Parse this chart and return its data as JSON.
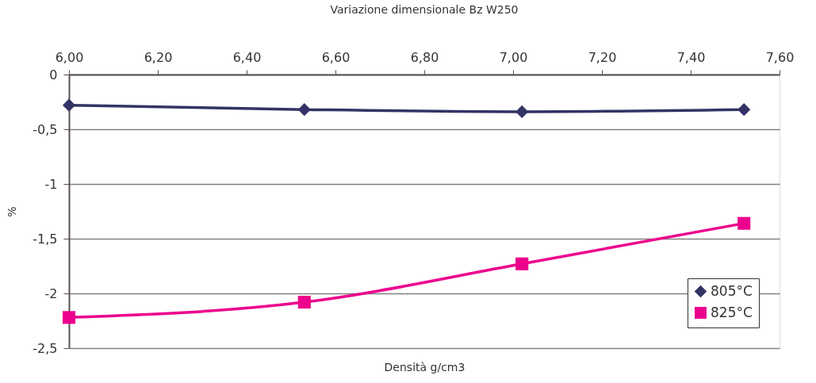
{
  "chart_data": {
    "type": "line",
    "title": "Variazione dimensionale Bz W250",
    "xlabel": "Densità g/cm3",
    "ylabel": "%",
    "x": [
      6.0,
      6.53,
      7.02,
      7.52
    ],
    "series": [
      {
        "name": "805°C",
        "color": "#333366",
        "marker": "diamond",
        "values": [
          -0.28,
          -0.32,
          -0.34,
          -0.32
        ]
      },
      {
        "name": "825°C",
        "color": "#ec008c",
        "marker": "square",
        "values": [
          -2.22,
          -2.08,
          -1.73,
          -1.36
        ]
      }
    ],
    "xlim": [
      6.0,
      7.6
    ],
    "xticks": [
      {
        "value": 6.0,
        "label": "6,00"
      },
      {
        "value": 6.2,
        "label": "6,20"
      },
      {
        "value": 6.4,
        "label": "6,40"
      },
      {
        "value": 6.6,
        "label": "6,60"
      },
      {
        "value": 6.8,
        "label": "6,80"
      },
      {
        "value": 7.0,
        "label": "7,00"
      },
      {
        "value": 7.2,
        "label": "7,20"
      },
      {
        "value": 7.4,
        "label": "7,40"
      },
      {
        "value": 7.6,
        "label": "7,60"
      }
    ],
    "ylim": [
      -2.5,
      0
    ],
    "yticks": [
      0,
      {
        "value": -0.5,
        "label": "-0,5"
      },
      -1,
      {
        "value": -1.5,
        "label": "-1,5"
      },
      -2,
      {
        "value": -2.5,
        "label": "-2,5"
      }
    ],
    "grid": "y",
    "legend": "bottom right",
    "line_style": "solid"
  }
}
